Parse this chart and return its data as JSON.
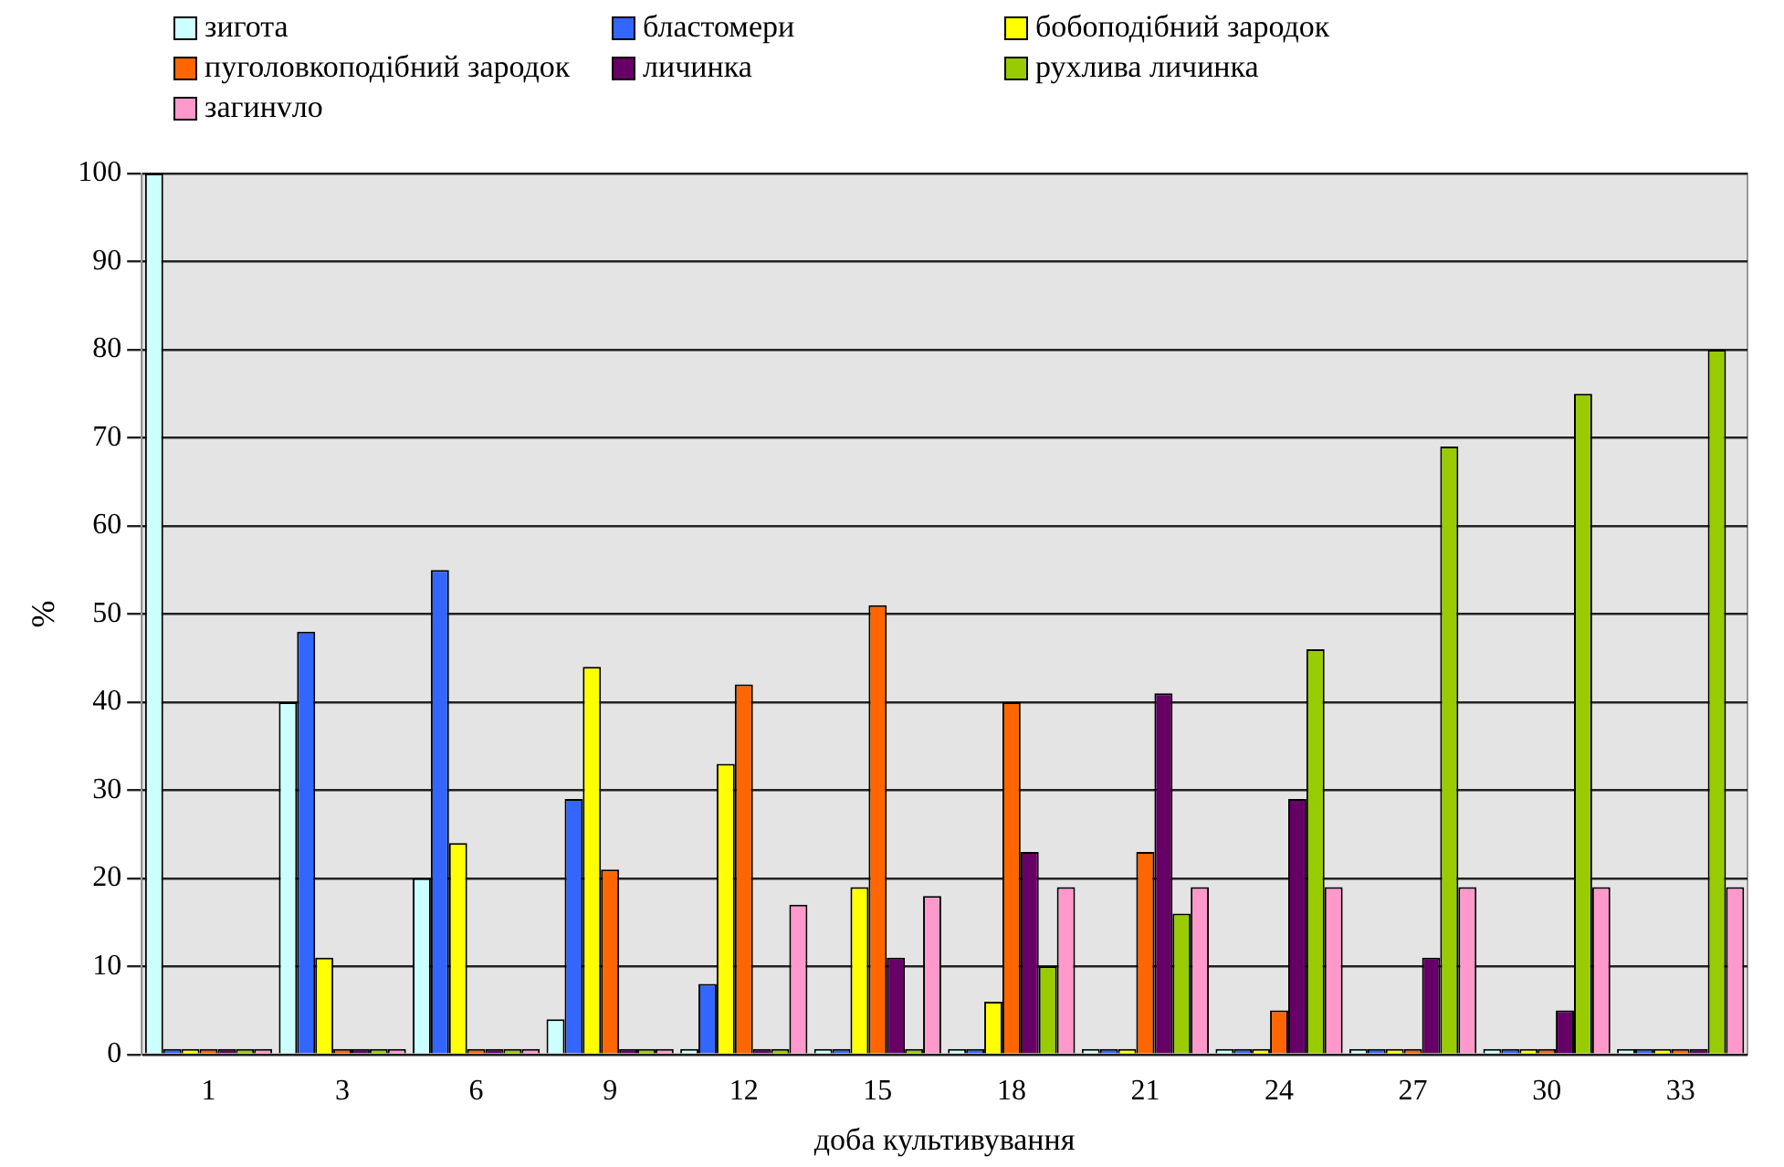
{
  "chart_data": {
    "type": "bar",
    "xlabel": "доба культивування",
    "ylabel": "%",
    "categories": [
      "1",
      "3",
      "6",
      "9",
      "12",
      "15",
      "18",
      "21",
      "24",
      "27",
      "30",
      "33"
    ],
    "series": [
      {
        "name": "зигота",
        "color": "#ccffff",
        "values": [
          100,
          40,
          20,
          4,
          0,
          0,
          0,
          0,
          0,
          0,
          0,
          0
        ]
      },
      {
        "name": "бластомери",
        "color": "#3366ff",
        "values": [
          0,
          48,
          55,
          29,
          8,
          0,
          0,
          0,
          0,
          0,
          0,
          0
        ]
      },
      {
        "name": "бобоподібний зародок",
        "color": "#ffff00",
        "values": [
          0,
          11,
          24,
          44,
          33,
          19,
          6,
          0,
          0,
          0,
          0,
          0
        ]
      },
      {
        "name": "пуголовкоподібний зародок",
        "color": "#ff6600",
        "values": [
          0,
          0,
          0,
          21,
          42,
          51,
          40,
          23,
          5,
          0,
          0,
          0
        ]
      },
      {
        "name": "личинка",
        "color": "#660066",
        "values": [
          0,
          0,
          0,
          0,
          0,
          11,
          23,
          41,
          29,
          11,
          5,
          0
        ]
      },
      {
        "name": "рухлива личинка",
        "color": "#99cc00",
        "values": [
          0,
          0,
          0,
          0,
          0,
          0,
          10,
          16,
          46,
          69,
          75,
          80
        ]
      },
      {
        "name": "загинvло",
        "color": "#ff99cc",
        "values": [
          0,
          0,
          0,
          0,
          17,
          18,
          19,
          19,
          19,
          19,
          19,
          19
        ]
      }
    ],
    "ylim": [
      0,
      100
    ],
    "yticks": [
      0,
      10,
      20,
      30,
      40,
      50,
      60,
      70,
      80,
      90,
      100
    ],
    "grid": "y",
    "legend": "top"
  }
}
